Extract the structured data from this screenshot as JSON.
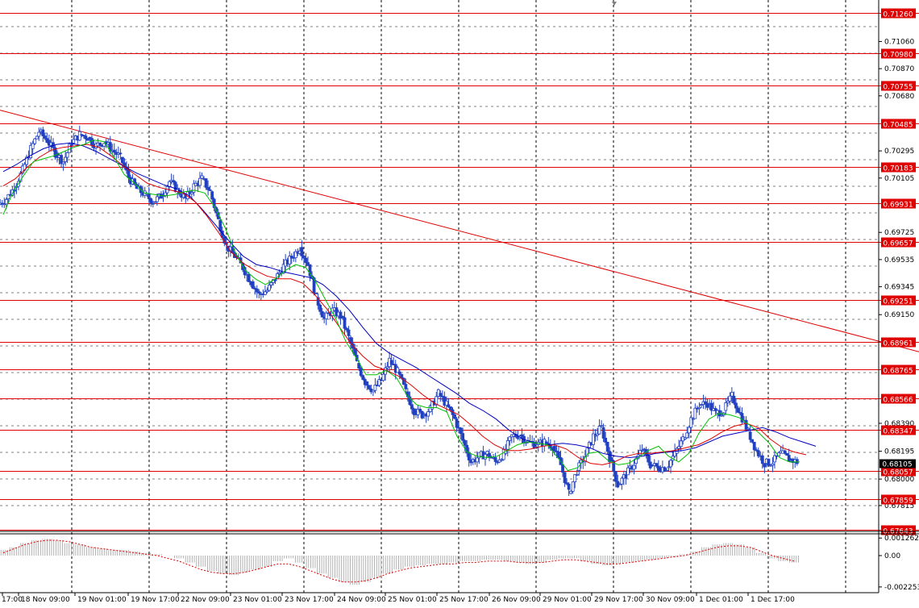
{
  "colors": {
    "background": "#ffffff",
    "grid": "#000000",
    "level_line": "#e00000",
    "level_badge_bg": "#e00000",
    "level_badge_text": "#ffffff",
    "candle": "#2040c0",
    "ma_fast": "#00c000",
    "ma_mid": "#e00000",
    "ma_slow": "#0000c0",
    "osma_bar": "#b0b0b0",
    "osma_signal": "#e00000",
    "current_badge_bg": "#000000"
  },
  "chart_data": [
    {
      "type": "line",
      "title": "",
      "instrument_type": "candlestick price chart with moving averages, horizontal levels and trendline",
      "ylim": [
        0.6764,
        0.7135
      ],
      "y_scale": "linear",
      "grid": "dotted vertical separators, dotted horizontal",
      "axis_ticks": [
        "0.71060",
        "0.70870",
        "0.70680",
        "0.70295",
        "0.70105",
        "0.69725",
        "0.69535",
        "0.69345",
        "0.69150",
        "0.68390",
        "0.68195",
        "0.68000",
        "0.67815"
      ],
      "x_tick_labels": [
        "17:00",
        "18 Nov 09:00",
        "19 Nov 01:00",
        "19 Nov 17:00",
        "22 Nov 09:00",
        "23 Nov 01:00",
        "23 Nov 17:00",
        "24 Nov 09:00",
        "25 Nov 01:00",
        "25 Nov 17:00",
        "26 Nov 09:00",
        "29 Nov 01:00",
        "29 Nov 17:00",
        "30 Nov 09:00",
        "1 Dec 01:00",
        "1 Dec 17:00"
      ],
      "levels": [
        "0.71260",
        "0.70980",
        "0.70755",
        "0.70485",
        "0.70183",
        "0.69931",
        "0.69657",
        "0.69251",
        "0.68961",
        "0.68765",
        "0.68566",
        "0.68347",
        "0.68057",
        "0.67859",
        "0.67643"
      ],
      "current_price": "0.68105",
      "trendline": {
        "from": 0.7058,
        "to": 0.6889
      },
      "closes": [
        0.6996,
        0.7004,
        0.7016,
        0.7031,
        0.7043,
        0.7037,
        0.7028,
        0.7022,
        0.7035,
        0.7041,
        0.7039,
        0.7033,
        0.7036,
        0.703,
        0.7025,
        0.7011,
        0.7003,
        0.6999,
        0.6994,
        0.6998,
        0.7008,
        0.7002,
        0.6996,
        0.7005,
        0.701,
        0.7001,
        0.6981,
        0.6963,
        0.6956,
        0.6948,
        0.6938,
        0.6929,
        0.6932,
        0.694,
        0.6949,
        0.6955,
        0.6962,
        0.695,
        0.6927,
        0.6912,
        0.6918,
        0.6914,
        0.6899,
        0.6881,
        0.6868,
        0.6862,
        0.6869,
        0.6883,
        0.6875,
        0.6861,
        0.6848,
        0.6845,
        0.6849,
        0.686,
        0.6852,
        0.6842,
        0.6827,
        0.6812,
        0.6816,
        0.6818,
        0.6812,
        0.6818,
        0.683,
        0.6831,
        0.6826,
        0.6824,
        0.6826,
        0.6823,
        0.681,
        0.679,
        0.6806,
        0.6816,
        0.683,
        0.6836,
        0.6815,
        0.6796,
        0.6803,
        0.6811,
        0.6821,
        0.681,
        0.6808,
        0.6808,
        0.6818,
        0.6828,
        0.6842,
        0.6852,
        0.6853,
        0.6846,
        0.6848,
        0.6858,
        0.6846,
        0.6833,
        0.682,
        0.6811,
        0.6812,
        0.6818,
        0.6814,
        0.6812
      ],
      "ma_fast": [
        0.6985,
        0.7001,
        0.7012,
        0.7022,
        0.7024,
        0.7026,
        0.7029,
        0.7032,
        0.7034,
        0.7037,
        0.7036,
        0.7025,
        0.7013,
        0.7007,
        0.7,
        0.6999,
        0.6998,
        0.6999,
        0.7001,
        0.7002,
        0.7,
        0.699,
        0.6976,
        0.6959,
        0.6946,
        0.694,
        0.6936,
        0.694,
        0.6946,
        0.695,
        0.6948,
        0.6938,
        0.6925,
        0.6912,
        0.6896,
        0.6885,
        0.6873,
        0.6873,
        0.6876,
        0.6871,
        0.6859,
        0.6852,
        0.685,
        0.685,
        0.6847,
        0.683,
        0.6819,
        0.6816,
        0.6815,
        0.6816,
        0.682,
        0.6824,
        0.6826,
        0.6825,
        0.6824,
        0.6815,
        0.6806,
        0.6808,
        0.6818,
        0.6819,
        0.6813,
        0.681,
        0.6811,
        0.6815,
        0.682,
        0.6823,
        0.6816,
        0.6812,
        0.6818,
        0.6832,
        0.6842,
        0.6846,
        0.6845,
        0.6843,
        0.6838,
        0.6832,
        0.6825,
        0.6815,
        0.6812,
        0.6812
      ],
      "ma_mid": [
        0.7005,
        0.701,
        0.7018,
        0.7025,
        0.703,
        0.7032,
        0.7033,
        0.7034,
        0.7032,
        0.7026,
        0.7019,
        0.7013,
        0.7007,
        0.7004,
        0.7002,
        0.7,
        0.6994,
        0.6984,
        0.6972,
        0.6959,
        0.6951,
        0.6946,
        0.6942,
        0.694,
        0.694,
        0.6937,
        0.6929,
        0.6919,
        0.6907,
        0.6895,
        0.6886,
        0.6879,
        0.6876,
        0.6872,
        0.6866,
        0.6859,
        0.6853,
        0.6849,
        0.6845,
        0.6838,
        0.683,
        0.6824,
        0.682,
        0.682,
        0.6821,
        0.6823,
        0.6824,
        0.6821,
        0.6815,
        0.6811,
        0.681,
        0.6812,
        0.6816,
        0.6818,
        0.6818,
        0.6819,
        0.682,
        0.6822,
        0.6824,
        0.6828,
        0.6833,
        0.6837,
        0.6839,
        0.6836,
        0.6828,
        0.6822,
        0.6819,
        0.6817
      ],
      "ma_slow": [
        0.7015,
        0.702,
        0.7026,
        0.7031,
        0.7034,
        0.7035,
        0.7033,
        0.7029,
        0.7024,
        0.7019,
        0.7014,
        0.701,
        0.7006,
        0.7003,
        0.6998,
        0.6988,
        0.6977,
        0.6966,
        0.6956,
        0.695,
        0.6948,
        0.6945,
        0.6943,
        0.6941,
        0.6936,
        0.6928,
        0.6918,
        0.6906,
        0.6895,
        0.6888,
        0.6883,
        0.6878,
        0.6872,
        0.6866,
        0.686,
        0.6853,
        0.6848,
        0.6842,
        0.6834,
        0.6828,
        0.6825,
        0.6824,
        0.6825,
        0.6824,
        0.6822,
        0.6818,
        0.6816,
        0.6815,
        0.6816,
        0.6818,
        0.6819,
        0.682,
        0.6822,
        0.6826,
        0.683,
        0.6832,
        0.6834,
        0.6836,
        0.6833,
        0.6829,
        0.6826,
        0.6823
      ]
    },
    {
      "type": "bar",
      "title": "",
      "indicator": "histogram with signal line",
      "axis_ticks": [
        "0.001262",
        "0.00",
        "-0.002253"
      ],
      "ylim": [
        -0.00255,
        0.00145
      ],
      "values": [
        0.0004,
        0.0006,
        0.0009,
        0.0011,
        0.0012,
        0.0011,
        0.0009,
        0.0008,
        0.0006,
        0.0005,
        0.0004,
        0.0004,
        0.0003,
        0.0002,
        0.0001,
        0.0,
        -0.0002,
        -0.0005,
        -0.0008,
        -0.0011,
        -0.0013,
        -0.0014,
        -0.0012,
        -0.001,
        -0.0008,
        -0.0004,
        -0.0002,
        -0.0005,
        -0.0009,
        -0.0013,
        -0.0016,
        -0.0019,
        -0.0021,
        -0.0019,
        -0.0016,
        -0.0013,
        -0.001,
        -0.0008,
        -0.0007,
        -0.0006,
        -0.0006,
        -0.0005,
        -0.0004,
        -0.0004,
        -0.0003,
        -0.0003,
        -0.0004,
        -0.0005,
        -0.0006,
        -0.0005,
        -0.0003,
        -0.0002,
        -0.0002,
        -0.0004,
        -0.0006,
        -0.0007,
        -0.0006,
        -0.0005,
        -0.0004,
        -0.0003,
        -0.0002,
        -0.0001,
        0.0001,
        0.0003,
        0.0006,
        0.0008,
        0.0009,
        0.0008,
        0.0006,
        0.0002,
        -0.0002,
        -0.0004,
        -0.0005
      ],
      "signal": [
        0.0002,
        0.0005,
        0.0008,
        0.001,
        0.0011,
        0.0011,
        0.001,
        0.0008,
        0.0006,
        0.0005,
        0.0004,
        0.0003,
        0.0002,
        0.0001,
        -0.0,
        -0.0002,
        -0.0004,
        -0.0007,
        -0.001,
        -0.0012,
        -0.0013,
        -0.0013,
        -0.0012,
        -0.001,
        -0.0008,
        -0.0006,
        -0.0006,
        -0.0008,
        -0.0011,
        -0.0014,
        -0.0017,
        -0.0019,
        -0.0019,
        -0.0018,
        -0.0016,
        -0.0013,
        -0.0011,
        -0.0009,
        -0.0008,
        -0.0007,
        -0.0006,
        -0.0006,
        -0.0005,
        -0.0005,
        -0.0004,
        -0.0004,
        -0.0004,
        -0.0005,
        -0.0005,
        -0.0005,
        -0.0004,
        -0.0003,
        -0.0003,
        -0.0004,
        -0.0005,
        -0.0006,
        -0.0006,
        -0.0005,
        -0.0004,
        -0.0003,
        -0.0002,
        -0.0001,
        0.0,
        0.0002,
        0.0004,
        0.0006,
        0.0007,
        0.0007,
        0.0006,
        0.0003,
        0.0,
        -0.0002,
        -0.0004
      ]
    }
  ]
}
